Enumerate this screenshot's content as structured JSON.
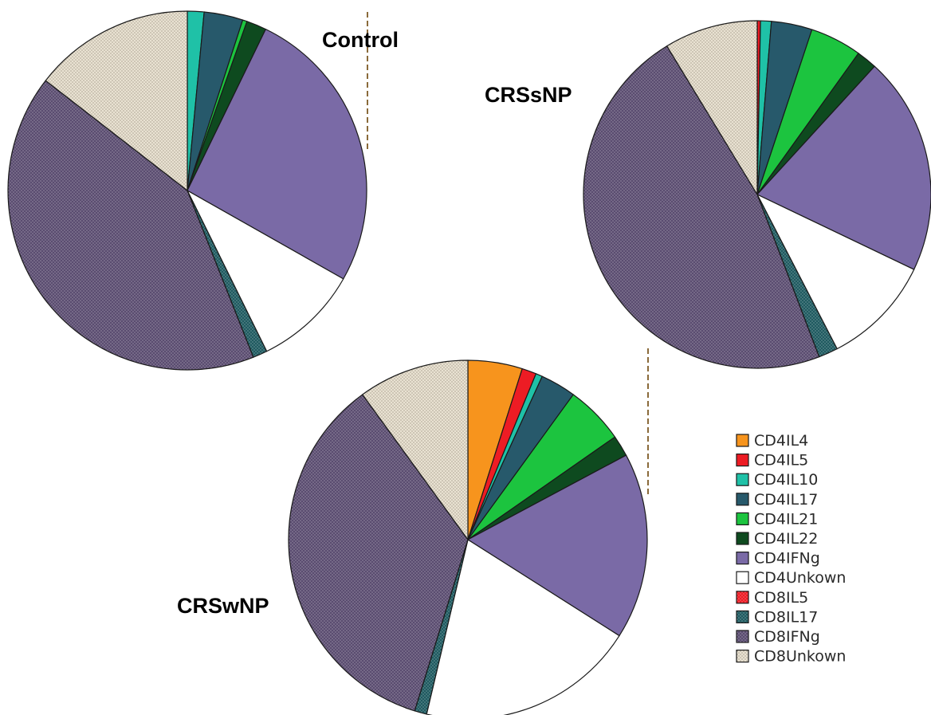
{
  "legend": [
    {
      "key": "CD4IL4",
      "label": "CD4IL4",
      "color": "#f7941d",
      "pattern": "solid"
    },
    {
      "key": "CD4IL5",
      "label": "CD4IL5",
      "color": "#ed1c24",
      "pattern": "solid"
    },
    {
      "key": "CD4IL10",
      "label": "CD4IL10",
      "color": "#1fc1a7",
      "pattern": "solid"
    },
    {
      "key": "CD4IL17",
      "label": "CD4IL17",
      "color": "#27596b",
      "pattern": "solid"
    },
    {
      "key": "CD4IL21",
      "label": "CD4IL21",
      "color": "#1cc43f",
      "pattern": "solid"
    },
    {
      "key": "CD4IL22",
      "label": "CD4IL22",
      "color": "#0e4a1f",
      "pattern": "solid"
    },
    {
      "key": "CD4IFNg",
      "label": "CD4IFNg",
      "color": "#7a6aa6",
      "pattern": "solid"
    },
    {
      "key": "CD4Unkown",
      "label": "CD4Unkown",
      "color": "#ffffff",
      "pattern": "solid"
    },
    {
      "key": "CD8IL5",
      "label": "CD8IL5",
      "color": "#ed1c24",
      "pattern": "dots"
    },
    {
      "key": "CD8IL17",
      "label": "CD8IL17",
      "color": "#1f5a60",
      "pattern": "dots"
    },
    {
      "key": "CD8IFNg",
      "label": "CD8IFNg",
      "color": "#5a4c70",
      "pattern": "dots"
    },
    {
      "key": "CD8Unkown",
      "label": "CD8Unkown",
      "color": "#e9e2d2",
      "pattern": "dots"
    }
  ],
  "chart_data": [
    {
      "type": "pie",
      "title": "Control",
      "unit": "percent",
      "slices": [
        {
          "label": "CD4IL4",
          "value": 0
        },
        {
          "label": "CD4IL5",
          "value": 0
        },
        {
          "label": "CD4IL10",
          "value": 1.5
        },
        {
          "label": "CD4IL17",
          "value": 3.5
        },
        {
          "label": "CD4IL21",
          "value": 0.4
        },
        {
          "label": "CD4IL22",
          "value": 1.8
        },
        {
          "label": "CD4IFNg",
          "value": 26.0
        },
        {
          "label": "CD4Unkown",
          "value": 9.5
        },
        {
          "label": "CD8IL5",
          "value": 0
        },
        {
          "label": "CD8IL17",
          "value": 1.3
        },
        {
          "label": "CD8IFNg",
          "value": 41.5
        },
        {
          "label": "CD8Unkown",
          "value": 14.5
        }
      ]
    },
    {
      "type": "pie",
      "title": "CRSsNP",
      "unit": "percent",
      "slices": [
        {
          "label": "CD4IL4",
          "value": 0
        },
        {
          "label": "CD4IL5",
          "value": 0.3
        },
        {
          "label": "CD4IL10",
          "value": 1.0
        },
        {
          "label": "CD4IL17",
          "value": 3.8
        },
        {
          "label": "CD4IL21",
          "value": 4.8
        },
        {
          "label": "CD4IL22",
          "value": 1.9
        },
        {
          "label": "CD4IFNg",
          "value": 20.3
        },
        {
          "label": "CD4Unkown",
          "value": 10.3
        },
        {
          "label": "CD8IL5",
          "value": 0
        },
        {
          "label": "CD8IL17",
          "value": 1.8
        },
        {
          "label": "CD8IFNg",
          "value": 47.1
        },
        {
          "label": "CD8Unkown",
          "value": 8.7
        }
      ]
    },
    {
      "type": "pie",
      "title": "CRSwNP",
      "unit": "percent",
      "slices": [
        {
          "label": "CD4IL4",
          "value": 4.9
        },
        {
          "label": "CD4IL5",
          "value": 1.3
        },
        {
          "label": "CD4IL10",
          "value": 0.6
        },
        {
          "label": "CD4IL17",
          "value": 3.2
        },
        {
          "label": "CD4IL21",
          "value": 5.3
        },
        {
          "label": "CD4IL22",
          "value": 1.9
        },
        {
          "label": "CD4IFNg",
          "value": 16.8
        },
        {
          "label": "CD4Unkown",
          "value": 19.7
        },
        {
          "label": "CD8IL5",
          "value": 0
        },
        {
          "label": "CD8IL17",
          "value": 1.1
        },
        {
          "label": "CD8IFNg",
          "value": 35.2
        },
        {
          "label": "CD8Unkown",
          "value": 10.0
        }
      ]
    }
  ]
}
